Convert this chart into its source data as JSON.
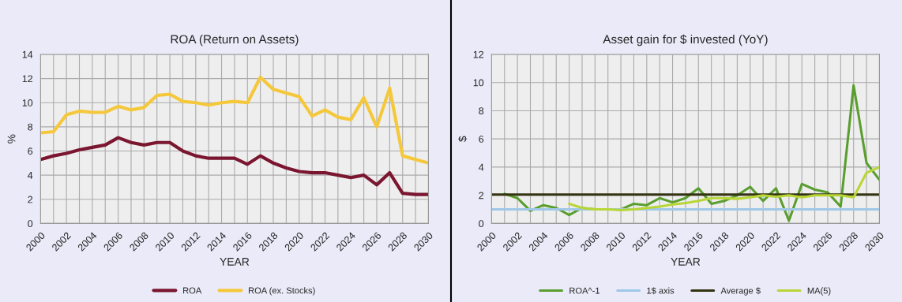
{
  "chart_data": [
    {
      "type": "line",
      "title": "ROA (Return on Assets)",
      "xlabel": "YEAR",
      "ylabel": "%",
      "x": [
        2000,
        2001,
        2002,
        2003,
        2004,
        2005,
        2006,
        2007,
        2008,
        2009,
        2010,
        2011,
        2012,
        2013,
        2014,
        2015,
        2016,
        2017,
        2018,
        2019,
        2020,
        2021,
        2022,
        2023,
        2024,
        2025,
        2026,
        2027,
        2028,
        2029,
        2030
      ],
      "series": [
        {
          "name": "ROA",
          "color": "#7b1630",
          "values": [
            5.3,
            5.6,
            5.8,
            6.1,
            6.3,
            6.5,
            7.1,
            6.7,
            6.5,
            6.7,
            6.7,
            6.0,
            5.6,
            5.4,
            5.4,
            5.4,
            4.9,
            5.6,
            5.0,
            4.6,
            4.3,
            4.2,
            4.2,
            4.0,
            3.8,
            4.0,
            3.2,
            4.2,
            2.5,
            2.4,
            2.4
          ]
        },
        {
          "name": "ROA (ex. Stocks)",
          "color": "#f5c83c",
          "values": [
            7.5,
            7.6,
            9.0,
            9.3,
            9.2,
            9.2,
            9.7,
            9.4,
            9.6,
            10.6,
            10.7,
            10.1,
            10.0,
            9.8,
            10.0,
            10.1,
            10.0,
            12.1,
            11.1,
            10.8,
            10.5,
            8.9,
            9.4,
            8.8,
            8.6,
            10.4,
            8.0,
            11.2,
            5.6,
            5.3,
            5.0
          ]
        }
      ],
      "xlim": [
        2000,
        2030
      ],
      "xticks": [
        2000,
        {
          "value": 2001,
          "label": null
        },
        2002,
        {
          "value": 2003,
          "label": null
        },
        2004,
        {
          "value": 2005,
          "label": null
        },
        2006,
        {
          "value": 2007,
          "label": null
        },
        2008,
        {
          "value": 2009,
          "label": null
        },
        2010,
        {
          "value": 2011,
          "label": null
        },
        2012,
        {
          "value": 2013,
          "label": null
        },
        2014,
        {
          "value": 2015,
          "label": null
        },
        2016,
        {
          "value": 2017,
          "label": null
        },
        2018,
        {
          "value": 2019,
          "label": null
        },
        2020,
        {
          "value": 2021,
          "label": null
        },
        2022,
        {
          "value": 2023,
          "label": null
        },
        2024,
        {
          "value": 2025,
          "label": null
        },
        2026,
        {
          "value": 2027,
          "label": null
        },
        2028,
        {
          "value": 2029,
          "label": null
        },
        2030
      ],
      "ylim": [
        0,
        14
      ],
      "yticks": [
        0,
        2,
        4,
        6,
        8,
        10,
        12,
        14
      ],
      "grid": true,
      "legend": "bottom",
      "line_style": "solid",
      "marker": "none"
    },
    {
      "type": "line",
      "title": "Asset gain for $ invested (YoY)",
      "xlabel": "YEAR",
      "ylabel": "$",
      "x": [
        2000,
        2001,
        2002,
        2003,
        2004,
        2005,
        2006,
        2007,
        2008,
        2009,
        2010,
        2011,
        2012,
        2013,
        2014,
        2015,
        2016,
        2017,
        2018,
        2019,
        2020,
        2021,
        2022,
        2023,
        2024,
        2025,
        2026,
        2027,
        2028,
        2029,
        2030
      ],
      "series": [
        {
          "name": "ROA^-1",
          "color": "#5a9e2f",
          "values": [
            null,
            2.1,
            1.8,
            0.9,
            1.3,
            1.1,
            0.6,
            1.1,
            1.0,
            1.0,
            1.0,
            1.4,
            1.3,
            1.8,
            1.5,
            1.8,
            2.5,
            1.4,
            1.6,
            2.0,
            2.6,
            1.6,
            2.5,
            0.2,
            2.8,
            2.4,
            2.2,
            1.2,
            9.8,
            4.3,
            3.1
          ]
        },
        {
          "name": "1$ axis",
          "color": "#9fc8e8",
          "values": [
            1,
            1,
            1,
            1,
            1,
            1,
            1,
            1,
            1,
            1,
            1,
            1,
            1,
            1,
            1,
            1,
            1,
            1,
            1,
            1,
            1,
            1,
            1,
            1,
            1,
            1,
            1,
            1,
            1,
            1,
            1
          ]
        },
        {
          "name": "Average $",
          "color": "#333311",
          "values": [
            2.05,
            2.05,
            2.05,
            2.05,
            2.05,
            2.05,
            2.05,
            2.05,
            2.05,
            2.05,
            2.05,
            2.05,
            2.05,
            2.05,
            2.05,
            2.05,
            2.05,
            2.05,
            2.05,
            2.05,
            2.05,
            2.05,
            2.05,
            2.05,
            2.05,
            2.05,
            2.05,
            2.05,
            2.05,
            2.05,
            2.05
          ]
        },
        {
          "name": "MA(5)",
          "color": "#b8d636",
          "values": [
            null,
            null,
            null,
            null,
            null,
            null,
            1.4,
            1.1,
            1.0,
            1.0,
            0.95,
            1.0,
            1.1,
            1.2,
            1.35,
            1.45,
            1.6,
            1.8,
            1.8,
            1.75,
            1.85,
            2.0,
            1.9,
            2.0,
            1.85,
            2.0,
            2.0,
            2.0,
            1.85,
            3.6,
            4.0
          ]
        }
      ],
      "xlim": [
        2000,
        2030
      ],
      "xticks": [
        2000,
        {
          "value": 2001,
          "label": null
        },
        2002,
        {
          "value": 2003,
          "label": null
        },
        2004,
        {
          "value": 2005,
          "label": null
        },
        2006,
        {
          "value": 2007,
          "label": null
        },
        2008,
        {
          "value": 2009,
          "label": null
        },
        2010,
        {
          "value": 2011,
          "label": null
        },
        2012,
        {
          "value": 2013,
          "label": null
        },
        2014,
        {
          "value": 2015,
          "label": null
        },
        2016,
        {
          "value": 2017,
          "label": null
        },
        2018,
        {
          "value": 2019,
          "label": null
        },
        2020,
        {
          "value": 2021,
          "label": null
        },
        2022,
        {
          "value": 2023,
          "label": null
        },
        2024,
        {
          "value": 2025,
          "label": null
        },
        2026,
        {
          "value": 2027,
          "label": null
        },
        2028,
        {
          "value": 2029,
          "label": null
        },
        2030
      ],
      "ylim": [
        0,
        12
      ],
      "yticks": [
        0,
        2,
        4,
        6,
        8,
        10,
        12
      ],
      "grid": true,
      "legend": "bottom",
      "line_style": "solid",
      "marker": "none"
    }
  ]
}
